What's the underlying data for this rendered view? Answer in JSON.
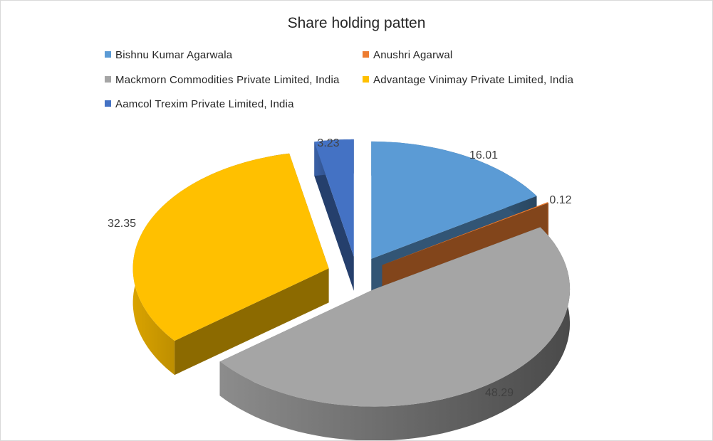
{
  "chart_data": {
    "type": "pie",
    "title": "Share holding patten",
    "legend_position": "top",
    "slices": [
      {
        "name": "Bishnu Kumar Agarwala",
        "value": 16.01,
        "label": "16.01",
        "color": "#5B9BD5"
      },
      {
        "name": "Anushri Agarwal",
        "value": 0.12,
        "label": "0.12",
        "color": "#ED7D31"
      },
      {
        "name": "Mackmorn Commodities Private Limited, India",
        "value": 48.29,
        "label": "48.29",
        "color": "#A5A5A5"
      },
      {
        "name": "Advantage Vinimay Private Limited, India",
        "value": 32.35,
        "label": "32.35",
        "color": "#FFC000"
      },
      {
        "name": "Aamcol Trexim Private Limited, India",
        "value": 3.23,
        "label": "3.23",
        "color": "#4472C4"
      }
    ]
  }
}
